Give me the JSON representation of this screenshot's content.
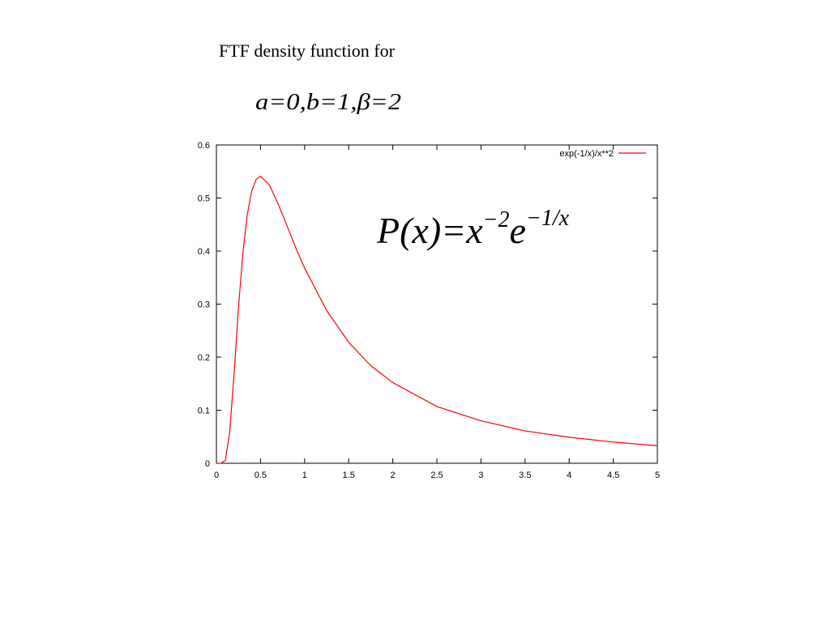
{
  "slide": {
    "heading": "FTF density function for",
    "parameters": "a=0,b=1,β=2"
  },
  "chart_data": {
    "type": "line",
    "x": [
      0,
      0.05,
      0.1,
      0.15,
      0.2,
      0.25,
      0.3,
      0.35,
      0.4,
      0.45,
      0.5,
      0.6,
      0.7,
      0.8,
      0.9,
      1,
      1.25,
      1.5,
      1.75,
      2,
      2.5,
      3,
      3.5,
      4,
      4.5,
      5
    ],
    "series": [
      {
        "name": "exp(-1/x)/x**2",
        "color": "#ff0000",
        "values": [
          0,
          0,
          0.005,
          0.057,
          0.168,
          0.293,
          0.396,
          0.469,
          0.513,
          0.535,
          0.541,
          0.525,
          0.489,
          0.448,
          0.406,
          0.368,
          0.288,
          0.228,
          0.184,
          0.152,
          0.107,
          0.08,
          0.061,
          0.049,
          0.04,
          0.033
        ]
      }
    ],
    "xlim": [
      0,
      5
    ],
    "ylim": [
      0,
      0.6
    ],
    "xticks": [
      0,
      0.5,
      1,
      1.5,
      2,
      2.5,
      3,
      3.5,
      4,
      4.5,
      5
    ],
    "yticks": [
      0,
      0.1,
      0.2,
      0.3,
      0.4,
      0.5,
      0.6
    ],
    "legend": "top-right",
    "annotation": {
      "base1": "P(x)=x",
      "sup1": "−2",
      "base2": "e",
      "sup2": "−1/x"
    }
  }
}
